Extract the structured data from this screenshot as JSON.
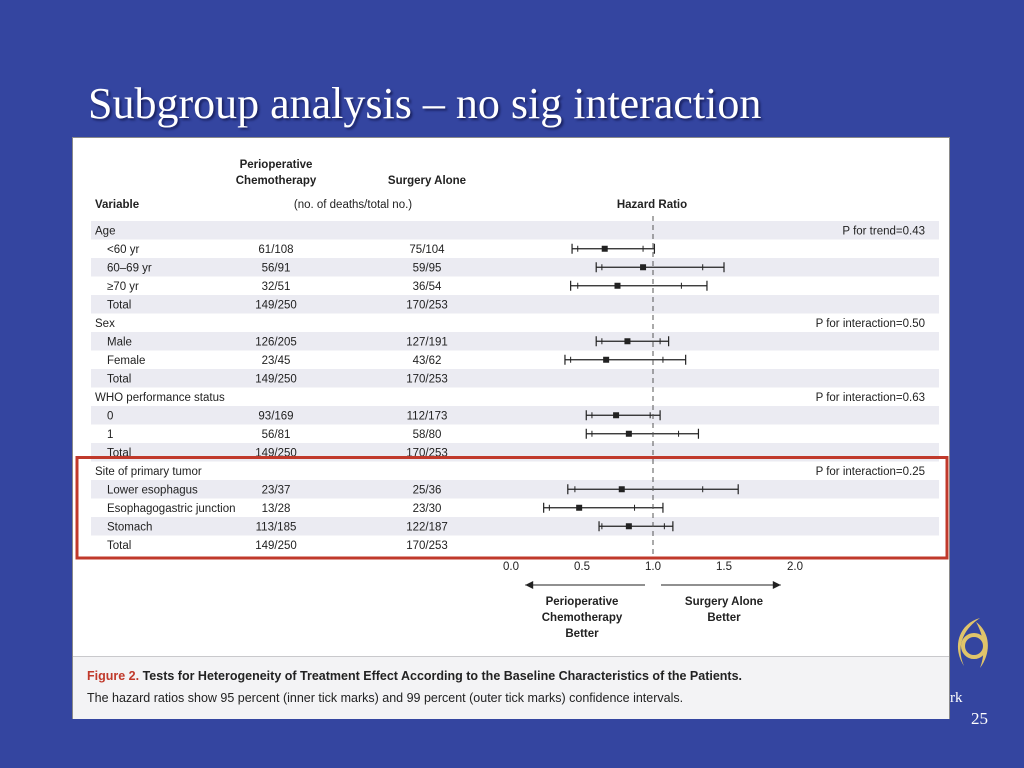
{
  "slide": {
    "title": "Subgroup analysis – no sig interaction",
    "page_number": "25",
    "logo_text": "rk"
  },
  "figure": {
    "caption_label": "Figure 2.",
    "caption_title": "Tests for Heterogeneity of Treatment Effect According to the Baseline Characteristics of the Patients.",
    "caption_text": "The hazard ratios show 95 percent (inner tick marks) and 99 percent (outer tick marks) confidence intervals."
  },
  "colors": {
    "background": "#3445a0",
    "row_band": "#ebebf2",
    "highlight_box": "#c0392b",
    "ink": "#222222"
  },
  "chart_data": {
    "type": "forest",
    "column_headers": {
      "variable": "Variable",
      "group1": "Perioperative Chemotherapy",
      "group2": "Surgery Alone",
      "subheader": "(no. of deaths/total no.)",
      "plot": "Hazard Ratio"
    },
    "x_ticks": [
      "0.0",
      "0.5",
      "1.0",
      "1.5",
      "2.0"
    ],
    "x_tick_values": [
      0,
      0.5,
      1.0,
      1.5,
      2.0
    ],
    "xlim": [
      0,
      2.0
    ],
    "reference_line": 1.0,
    "favors_left": "Perioperative Chemotherapy Better",
    "favors_right": "Surgery Alone Better",
    "highlighted_group": "Site of primary tumor",
    "groups": [
      {
        "name": "Age",
        "p_label": "P for trend=0.43",
        "rows": [
          {
            "label": "<60 yr",
            "g1": "61/108",
            "g2": "75/104",
            "hr": 0.66,
            "ci95": [
              0.47,
              0.93
            ],
            "ci99": [
              0.43,
              1.01
            ]
          },
          {
            "label": "60–69 yr",
            "g1": "56/91",
            "g2": "59/95",
            "hr": 0.93,
            "ci95": [
              0.64,
              1.35
            ],
            "ci99": [
              0.6,
              1.5
            ]
          },
          {
            "label": "≥70 yr",
            "g1": "32/51",
            "g2": "36/54",
            "hr": 0.75,
            "ci95": [
              0.47,
              1.2
            ],
            "ci99": [
              0.42,
              1.38
            ]
          },
          {
            "label": "Total",
            "g1": "149/250",
            "g2": "170/253"
          }
        ]
      },
      {
        "name": "Sex",
        "p_label": "P for interaction=0.50",
        "rows": [
          {
            "label": "Male",
            "g1": "126/205",
            "g2": "127/191",
            "hr": 0.82,
            "ci95": [
              0.64,
              1.05
            ],
            "ci99": [
              0.6,
              1.11
            ]
          },
          {
            "label": "Female",
            "g1": "23/45",
            "g2": "43/62",
            "hr": 0.67,
            "ci95": [
              0.42,
              1.07
            ],
            "ci99": [
              0.38,
              1.23
            ]
          },
          {
            "label": "Total",
            "g1": "149/250",
            "g2": "170/253"
          }
        ]
      },
      {
        "name": "WHO performance status",
        "p_label": "P for interaction=0.63",
        "rows": [
          {
            "label": "0",
            "g1": "93/169",
            "g2": "112/173",
            "hr": 0.74,
            "ci95": [
              0.57,
              0.98
            ],
            "ci99": [
              0.53,
              1.05
            ]
          },
          {
            "label": "1",
            "g1": "56/81",
            "g2": "58/80",
            "hr": 0.83,
            "ci95": [
              0.57,
              1.18
            ],
            "ci99": [
              0.53,
              1.32
            ]
          },
          {
            "label": "Total",
            "g1": "149/250",
            "g2": "170/253"
          }
        ]
      },
      {
        "name": "Site of primary tumor",
        "p_label": "P for interaction=0.25",
        "rows": [
          {
            "label": "Lower esophagus",
            "g1": "23/37",
            "g2": "25/36",
            "hr": 0.78,
            "ci95": [
              0.45,
              1.35
            ],
            "ci99": [
              0.4,
              1.6
            ]
          },
          {
            "label": "Esophagogastric junction",
            "g1": "13/28",
            "g2": "23/30",
            "hr": 0.48,
            "ci95": [
              0.27,
              0.87
            ],
            "ci99": [
              0.23,
              1.07
            ]
          },
          {
            "label": "Stomach",
            "g1": "113/185",
            "g2": "122/187",
            "hr": 0.83,
            "ci95": [
              0.64,
              1.08
            ],
            "ci99": [
              0.62,
              1.14
            ]
          },
          {
            "label": "Total",
            "g1": "149/250",
            "g2": "170/253"
          }
        ]
      }
    ]
  }
}
